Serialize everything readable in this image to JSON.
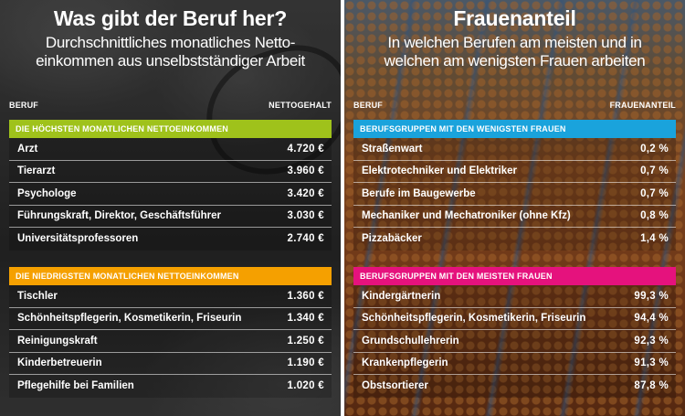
{
  "left": {
    "title": "Was gibt der Beruf her?",
    "subtitle_line1": "Durchschnittliches monatliches Netto-",
    "subtitle_line2": "einkommen aus unselbstständiger Arbeit",
    "col_label": "BERUF",
    "col_value": "NETTOGEHALT",
    "sections": [
      {
        "title": "DIE HÖCHSTEN MONATLICHEN NETTOEINKOMMEN",
        "color": "#9fc21b",
        "rows": [
          {
            "label": "Arzt",
            "value": "4.720 €"
          },
          {
            "label": "Tierarzt",
            "value": "3.960 €"
          },
          {
            "label": "Psychologe",
            "value": "3.420 €"
          },
          {
            "label": "Führungskraft, Direktor, Geschäftsführer",
            "value": "3.030 €"
          },
          {
            "label": "Universitätsprofessoren",
            "value": "2.740 €"
          }
        ]
      },
      {
        "title": "DIE NIEDRIGSTEN MONATLICHEN NETTOEINKOMMEN",
        "color": "#f5a000",
        "rows": [
          {
            "label": "Tischler",
            "value": "1.360 €"
          },
          {
            "label": "Schönheitspflegerin, Kosmetikerin, Friseurin",
            "value": "1.340 €"
          },
          {
            "label": "Reinigungskraft",
            "value": "1.250 €"
          },
          {
            "label": "Kinderbetreuerin",
            "value": "1.190 €"
          },
          {
            "label": "Pflegehilfe bei Familien",
            "value": "1.020 €"
          }
        ]
      }
    ]
  },
  "right": {
    "title": "Frauenanteil",
    "subtitle_line1": "In welchen Berufen am meisten und in",
    "subtitle_line2": "welchen am wenigsten Frauen arbeiten",
    "col_label": "BERUF",
    "col_value": "FRAUENANTEIL",
    "sections": [
      {
        "title": "BERUFSGRUPPEN MIT DEN WENIGSTEN FRAUEN",
        "color": "#1aa3dc",
        "rows": [
          {
            "label": "Straßenwart",
            "value": "0,2 %"
          },
          {
            "label": "Elektrotechniker und Elektriker",
            "value": "0,7 %"
          },
          {
            "label": "Berufe im Baugewerbe",
            "value": "0,7 %"
          },
          {
            "label": "Mechaniker und Mechatroniker (ohne Kfz)",
            "value": "0,8 %"
          },
          {
            "label": "Pizzabäcker",
            "value": "1,4 %"
          }
        ]
      },
      {
        "title": "BERUFSGRUPPEN MIT DEN MEISTEN FRAUEN",
        "color": "#e5127d",
        "rows": [
          {
            "label": "Kindergärtnerin",
            "value": "99,3 %"
          },
          {
            "label": "Schönheitspflegerin, Kosmetikerin, Friseurin",
            "value": "94,4 %"
          },
          {
            "label": "Grundschullehrerin",
            "value": "92,3 %"
          },
          {
            "label": "Krankenpflegerin",
            "value": "91,3 %"
          },
          {
            "label": "Obstsortierer",
            "value": "87,8 %"
          }
        ]
      }
    ]
  }
}
